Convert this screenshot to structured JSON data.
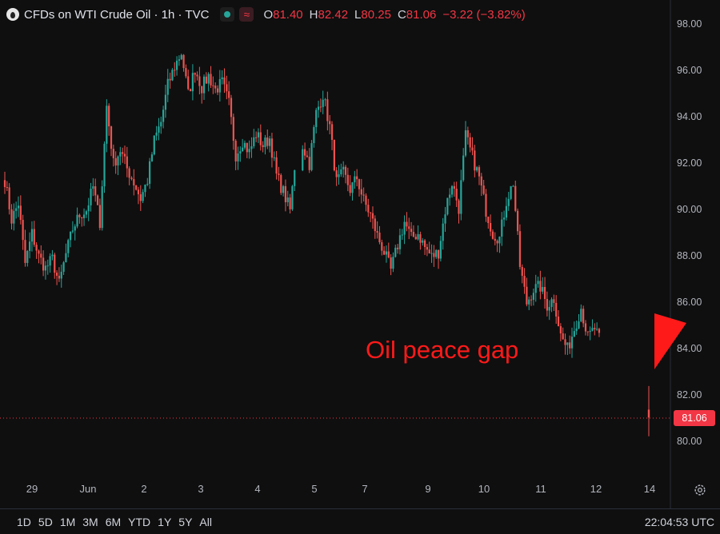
{
  "header": {
    "title": "CFDs on WTI Crude Oil · 1h · TVC",
    "ohlc": [
      {
        "key": "O",
        "value": "81.40"
      },
      {
        "key": "H",
        "value": "82.42"
      },
      {
        "key": "L",
        "value": "80.25"
      },
      {
        "key": "C",
        "value": "81.06"
      }
    ],
    "change": "−3.22 (−3.82%)",
    "icons": [
      "oil-drop-icon",
      "market-status-icon",
      "wave-icon"
    ]
  },
  "annotation": "Oil peace gap",
  "last_price": "81.06",
  "colors": {
    "up": "#26a69a",
    "down": "#ef5350",
    "annotation": "#ff1a1a",
    "price_line": "#f23645"
  },
  "chart_data": {
    "type": "candlestick",
    "title": "",
    "y_ticks": [
      "98.00",
      "96.00",
      "94.00",
      "92.00",
      "90.00",
      "88.00",
      "86.00",
      "84.00",
      "82.00",
      "80.00"
    ],
    "ylim": [
      79.6,
      98.4
    ],
    "x_ticks": [
      "29",
      "Jun",
      "2",
      "3",
      "4",
      "5",
      "7",
      "9",
      "10",
      "11",
      "12",
      "14"
    ],
    "grid": false,
    "last_price": 81.06,
    "path": [
      [
        91.3,
        0
      ],
      [
        89.6,
        0
      ],
      [
        90.3,
        0
      ],
      [
        87.7,
        0
      ],
      [
        89.0,
        0
      ],
      [
        88.0,
        0
      ],
      [
        87.5,
        0
      ],
      [
        87.9,
        0
      ],
      [
        86.8,
        0
      ],
      [
        88.1,
        0
      ],
      [
        89.2,
        0
      ],
      [
        89.8,
        0
      ],
      [
        90.0,
        0
      ],
      [
        91.0,
        0
      ],
      [
        89.5,
        0
      ],
      [
        94.5,
        0
      ],
      [
        92.0,
        0
      ],
      [
        92.6,
        0
      ],
      [
        91.8,
        0
      ],
      [
        91.2,
        0
      ],
      [
        90.5,
        0
      ],
      [
        91.3,
        0
      ],
      [
        93.0,
        0
      ],
      [
        93.8,
        0
      ],
      [
        95.4,
        0
      ],
      [
        96.2,
        0
      ],
      [
        96.8,
        0
      ],
      [
        95.0,
        0
      ],
      [
        96.1,
        0
      ],
      [
        95.3,
        0
      ],
      [
        95.8,
        0
      ],
      [
        95.2,
        0
      ],
      [
        95.5,
        0
      ],
      [
        94.6,
        0
      ],
      [
        92.4,
        0
      ],
      [
        93.0,
        0
      ],
      [
        92.5,
        0
      ],
      [
        93.3,
        0
      ],
      [
        92.8,
        0
      ],
      [
        93.1,
        0
      ],
      [
        91.5,
        0
      ],
      [
        90.8,
        0
      ],
      [
        90.0,
        1
      ],
      [
        92.8,
        0
      ],
      [
        92.0,
        0
      ],
      [
        94.2,
        0
      ],
      [
        95.0,
        0
      ],
      [
        93.6,
        0
      ],
      [
        91.2,
        0
      ],
      [
        91.6,
        0
      ],
      [
        90.9,
        0
      ],
      [
        91.4,
        0
      ],
      [
        90.4,
        0
      ],
      [
        89.8,
        0
      ],
      [
        88.9,
        0
      ],
      [
        88.2,
        0
      ],
      [
        87.4,
        0
      ],
      [
        88.5,
        0
      ],
      [
        89.5,
        0
      ],
      [
        88.8,
        0
      ],
      [
        89.0,
        0
      ],
      [
        88.4,
        0
      ],
      [
        88.0,
        0
      ],
      [
        88.2,
        0
      ],
      [
        90.0,
        0
      ],
      [
        91.2,
        0
      ],
      [
        90.1,
        0
      ],
      [
        93.2,
        0
      ],
      [
        92.3,
        0
      ],
      [
        91.4,
        0
      ],
      [
        90.0,
        0
      ],
      [
        89.0,
        0
      ],
      [
        88.8,
        0
      ],
      [
        90.4,
        0
      ],
      [
        91.2,
        0
      ],
      [
        87.6,
        0
      ],
      [
        86.0,
        0
      ],
      [
        86.6,
        0
      ],
      [
        86.7,
        0
      ],
      [
        85.9,
        0
      ],
      [
        86.2,
        0
      ],
      [
        84.6,
        0
      ],
      [
        84.0,
        0
      ],
      [
        84.9,
        0
      ],
      [
        85.8,
        0
      ],
      [
        84.5,
        0
      ],
      [
        84.9,
        0
      ],
      [
        84.2,
        1
      ],
      [
        81.06,
        0
      ]
    ]
  },
  "bottom_bar": {
    "ranges": [
      "1D",
      "5D",
      "1M",
      "3M",
      "6M",
      "YTD",
      "1Y",
      "5Y",
      "All"
    ],
    "clock": "22:04:53 UTC"
  }
}
